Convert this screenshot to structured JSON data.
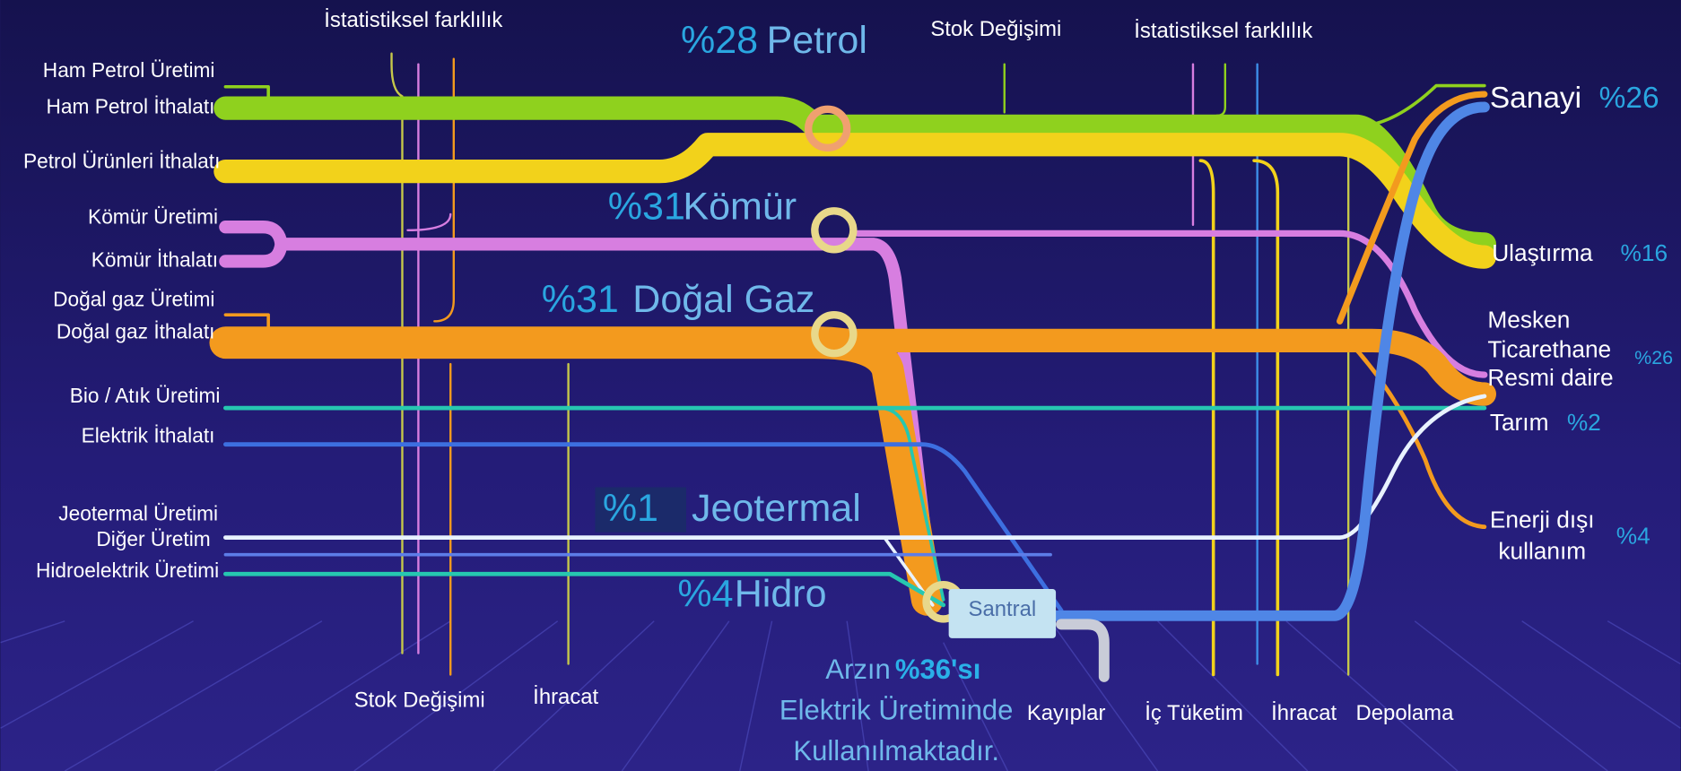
{
  "sources": [
    "Ham Petrol Üretimi",
    "Ham Petrol İthalatı",
    "Petrol Ürünleri İthalatı",
    "Kömür Üretimi",
    "Kömür İthalatı",
    "Doğal gaz Üretimi",
    "Doğal gaz İthalatı",
    "Bio / Atık Üretimi",
    "Elektrik İthalatı",
    "Jeotermal Üretimi",
    "Diğer Üretim",
    "Hidroelektrik Üretimi"
  ],
  "fuels": [
    {
      "share": "%28",
      "name": "Petrol"
    },
    {
      "share": "%31",
      "name": "Kömür"
    },
    {
      "share": "%31",
      "name": "Doğal Gaz"
    },
    {
      "share": "%1",
      "name": "Jeotermal"
    },
    {
      "share": "%4",
      "name": "Hidro"
    }
  ],
  "top_labels": [
    "İstatistiksel farklılık",
    "Stok Değişimi",
    "İstatistiksel farklılık"
  ],
  "bottom_labels": [
    "Stok Değişimi",
    "İhracat",
    "Kayıplar",
    "İç Tüketim",
    "İhracat",
    "Depolama"
  ],
  "plant": "Santral",
  "note": {
    "before": "Arzın",
    "share": "%36'sı",
    "line2": "Elektrik Üretiminde",
    "line3": "Kullanılmaktadır."
  },
  "sectors": [
    {
      "lines": [
        "Sanayi"
      ],
      "share": "%26"
    },
    {
      "lines": [
        "Ulaştırma"
      ],
      "share": "%16"
    },
    {
      "lines": [
        "Mesken",
        "Ticarethane",
        "Resmi daire"
      ],
      "share": "%26"
    },
    {
      "lines": [
        "Tarım"
      ],
      "share": "%2"
    },
    {
      "lines": [
        "Enerji dışı",
        "kullanım"
      ],
      "share": "%4"
    }
  ]
}
